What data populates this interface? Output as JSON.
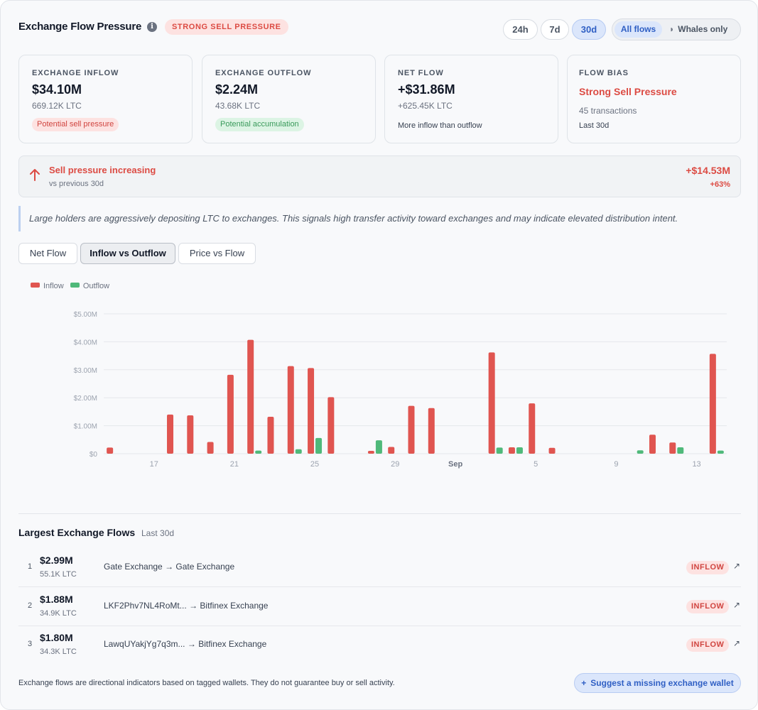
{
  "header": {
    "title": "Exchange Flow Pressure",
    "info_icon": "info-icon",
    "pressure_badge": "STRONG SELL PRESSURE",
    "timeframes": [
      "24h",
      "7d",
      "30d"
    ],
    "active_timeframe": "30d",
    "flow_filter": {
      "all": "All flows",
      "whales": "Whales only",
      "whale_icon": "whale-icon",
      "active": "All flows"
    }
  },
  "cards": {
    "inflow": {
      "label": "EXCHANGE INFLOW",
      "value": "$34.10M",
      "sub": "669.12K LTC",
      "tag": "Potential sell pressure"
    },
    "outflow": {
      "label": "EXCHANGE OUTFLOW",
      "value": "$2.24M",
      "sub": "43.68K LTC",
      "tag": "Potential accumulation"
    },
    "net": {
      "label": "NET FLOW",
      "value": "+$31.86M",
      "sub": "+625.45K LTC",
      "note": "More inflow than outflow"
    },
    "bias": {
      "label": "FLOW BIAS",
      "value": "Strong Sell Pressure",
      "sub1": "45 transactions",
      "sub2": "Last 30d"
    }
  },
  "trend": {
    "title": "Sell pressure increasing",
    "sub": "vs previous 30d",
    "amount": "+$14.53M",
    "pct": "+63%",
    "icon": "arrow-up-icon"
  },
  "insight": "Large holders are aggressively depositing LTC to exchanges. This signals high transfer activity toward exchanges and may indicate elevated distribution intent.",
  "view_tabs": [
    "Net Flow",
    "Inflow vs Outflow",
    "Price vs Flow"
  ],
  "active_view": "Inflow vs Outflow",
  "colors": {
    "inflow": "#e05550",
    "outflow": "#4fb97a",
    "accent": "#2f5fc4"
  },
  "chart_data": {
    "type": "bar",
    "series_names": [
      "Inflow",
      "Outflow"
    ],
    "x_start": "Aug 15",
    "x_tick_labels": [
      "17",
      "21",
      "25",
      "29",
      "Sep",
      "5",
      "9",
      "13"
    ],
    "y_tick_labels": [
      "$0",
      "$1.00M",
      "$2.00M",
      "$3.00M",
      "$4.00M",
      "$5.00M"
    ],
    "ylim": [
      0,
      5
    ],
    "y_unit": "$M",
    "grid": true,
    "legend": "top-left",
    "days": [
      "Aug 15",
      "Aug 16",
      "Aug 17",
      "Aug 18",
      "Aug 19",
      "Aug 20",
      "Aug 21",
      "Aug 22",
      "Aug 23",
      "Aug 24",
      "Aug 25",
      "Aug 26",
      "Aug 27",
      "Aug 28",
      "Aug 29",
      "Aug 30",
      "Aug 31",
      "Sep 1",
      "Sep 2",
      "Sep 3",
      "Sep 4",
      "Sep 5",
      "Sep 6",
      "Sep 7",
      "Sep 8",
      "Sep 9",
      "Sep 10",
      "Sep 11",
      "Sep 12",
      "Sep 13",
      "Sep 14"
    ],
    "series": [
      {
        "name": "Inflow",
        "values": [
          0.22,
          0,
          0,
          1.4,
          1.37,
          0.42,
          2.82,
          4.07,
          1.32,
          3.13,
          3.06,
          2.02,
          0,
          0.1,
          0.24,
          1.71,
          1.63,
          0,
          0,
          3.62,
          0.23,
          1.8,
          0.21,
          0,
          0,
          0,
          0,
          0.68,
          0.4,
          0,
          3.57
        ]
      },
      {
        "name": "Outflow",
        "values": [
          0,
          0,
          0,
          0,
          0,
          0,
          0,
          0.11,
          0,
          0.16,
          0.56,
          0,
          0,
          0.48,
          0,
          0,
          0,
          0,
          0,
          0.22,
          0.23,
          0,
          0,
          0,
          0,
          0,
          0.12,
          0,
          0.23,
          0,
          0.11
        ]
      }
    ]
  },
  "flows": {
    "title": "Largest Exchange Flows",
    "period": "Last 30d",
    "arrow": "→",
    "rows": [
      {
        "rank": "1",
        "usd": "$2.99M",
        "ltc": "55.1K LTC",
        "from": "Gate Exchange",
        "to": "Gate Exchange",
        "badge": "INFLOW"
      },
      {
        "rank": "2",
        "usd": "$1.88M",
        "ltc": "34.9K LTC",
        "from": "LKF2Phv7NL4RoMt...",
        "to": "Bitfinex Exchange",
        "badge": "INFLOW"
      },
      {
        "rank": "3",
        "usd": "$1.80M",
        "ltc": "34.3K LTC",
        "from": "LawqUYakjYg7q3m...",
        "to": "Bitfinex Exchange",
        "badge": "INFLOW"
      }
    ]
  },
  "footer": {
    "note": "Exchange flows are directional indicators based on tagged wallets. They do not guarantee buy or sell activity.",
    "suggest": "Suggest a missing exchange wallet",
    "plus_icon": "plus-icon"
  }
}
